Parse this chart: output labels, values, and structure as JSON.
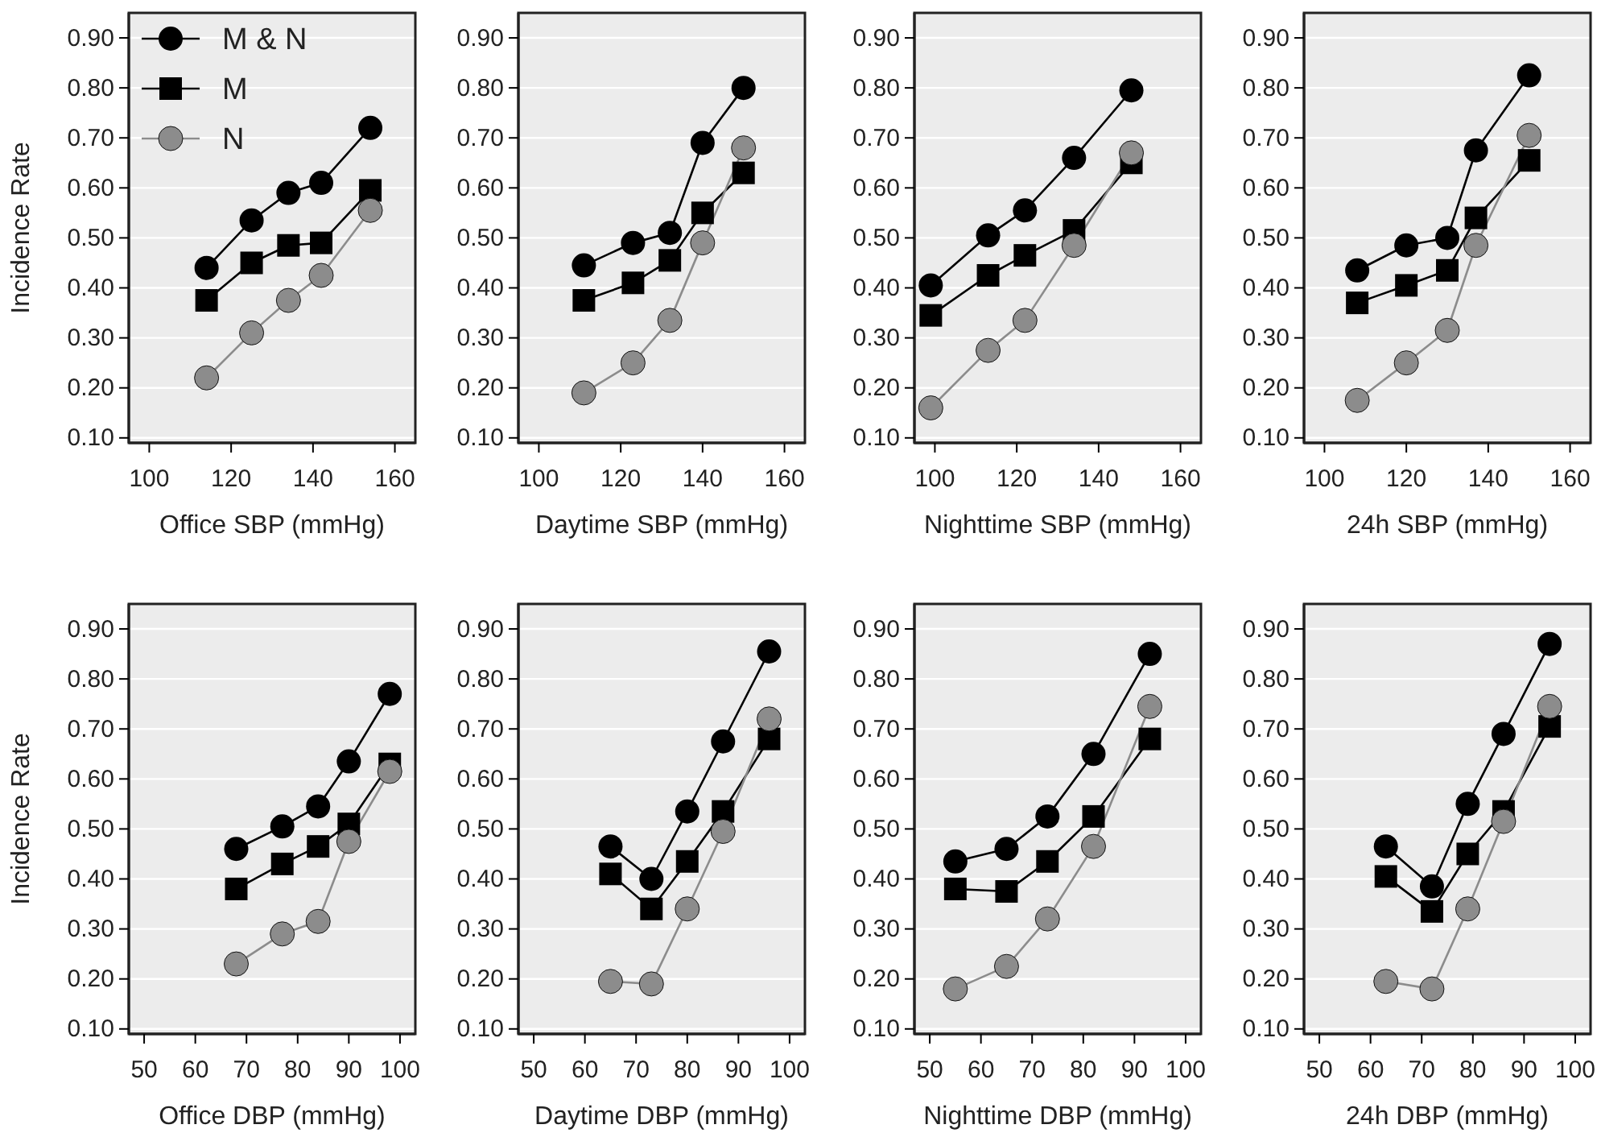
{
  "chart_data": [
    {
      "type": "line",
      "xlabel": "Office SBP (mmHg)",
      "ylabel": "Incidence Rate",
      "xlim": [
        95,
        165
      ],
      "xticks": [
        100,
        120,
        140,
        160
      ],
      "ylim": [
        0.09,
        0.95
      ],
      "yticks": [
        {
          "value": 0.1,
          "label": "0.10"
        },
        {
          "value": 0.2,
          "label": "0.20"
        },
        {
          "value": 0.3,
          "label": "0.30"
        },
        {
          "value": 0.4,
          "label": "0.40"
        },
        {
          "value": 0.5,
          "label": "0.50"
        },
        {
          "value": 0.6,
          "label": "0.60"
        },
        {
          "value": 0.7,
          "label": "0.70"
        },
        {
          "value": 0.8,
          "label": "0.80"
        },
        {
          "value": 0.9,
          "label": "0.90"
        }
      ],
      "grid": "y",
      "legend": "top left",
      "line_style": "solid",
      "series": [
        {
          "name": "M & N",
          "color": "#000000",
          "marker": "circle",
          "x": [
            114,
            125,
            134,
            142,
            154
          ],
          "values": [
            0.44,
            0.535,
            0.59,
            0.61,
            0.72
          ]
        },
        {
          "name": "M",
          "color": "#000000",
          "marker": "square",
          "x": [
            114,
            125,
            134,
            142,
            154
          ],
          "values": [
            0.375,
            0.45,
            0.485,
            0.49,
            0.595
          ]
        },
        {
          "name": "N",
          "color": "#8c8c8c",
          "marker": "circle",
          "x": [
            114,
            125,
            134,
            142,
            154
          ],
          "values": [
            0.22,
            0.31,
            0.375,
            0.425,
            0.555
          ]
        }
      ]
    },
    {
      "type": "line",
      "xlabel": "Daytime SBP (mmHg)",
      "xlim": [
        95,
        165
      ],
      "xticks": [
        100,
        120,
        140,
        160
      ],
      "ylim": [
        0.09,
        0.95
      ],
      "yticks": [
        {
          "value": 0.1,
          "label": "0.10"
        },
        {
          "value": 0.2,
          "label": "0.20"
        },
        {
          "value": 0.3,
          "label": "0.30"
        },
        {
          "value": 0.4,
          "label": "0.40"
        },
        {
          "value": 0.5,
          "label": "0.50"
        },
        {
          "value": 0.6,
          "label": "0.60"
        },
        {
          "value": 0.7,
          "label": "0.70"
        },
        {
          "value": 0.8,
          "label": "0.80"
        },
        {
          "value": 0.9,
          "label": "0.90"
        }
      ],
      "grid": "y",
      "line_style": "solid",
      "series": [
        {
          "color": "#000000",
          "marker": "circle",
          "x": [
            111,
            123,
            132,
            140,
            150
          ],
          "values": [
            0.445,
            0.49,
            0.51,
            0.69,
            0.8
          ]
        },
        {
          "color": "#000000",
          "marker": "square",
          "x": [
            111,
            123,
            132,
            140,
            150
          ],
          "values": [
            0.375,
            0.41,
            0.455,
            0.55,
            0.63
          ]
        },
        {
          "color": "#8c8c8c",
          "marker": "circle",
          "x": [
            111,
            123,
            132,
            140,
            150
          ],
          "values": [
            0.19,
            0.25,
            0.335,
            0.49,
            0.68
          ]
        }
      ]
    },
    {
      "type": "line",
      "xlabel": "Nighttime SBP (mmHg)",
      "xlim": [
        95,
        165
      ],
      "xticks": [
        100,
        120,
        140,
        160
      ],
      "ylim": [
        0.09,
        0.95
      ],
      "yticks": [
        {
          "value": 0.1,
          "label": "0.10"
        },
        {
          "value": 0.2,
          "label": "0.20"
        },
        {
          "value": 0.3,
          "label": "0.30"
        },
        {
          "value": 0.4,
          "label": "0.40"
        },
        {
          "value": 0.5,
          "label": "0.50"
        },
        {
          "value": 0.6,
          "label": "0.60"
        },
        {
          "value": 0.7,
          "label": "0.70"
        },
        {
          "value": 0.8,
          "label": "0.80"
        },
        {
          "value": 0.9,
          "label": "0.90"
        }
      ],
      "grid": "y",
      "line_style": "solid",
      "series": [
        {
          "color": "#000000",
          "marker": "circle",
          "x": [
            99,
            113,
            122,
            134,
            148
          ],
          "values": [
            0.405,
            0.505,
            0.555,
            0.66,
            0.795
          ]
        },
        {
          "color": "#000000",
          "marker": "square",
          "x": [
            99,
            113,
            122,
            134,
            148
          ],
          "values": [
            0.345,
            0.425,
            0.465,
            0.515,
            0.65
          ]
        },
        {
          "color": "#8c8c8c",
          "marker": "circle",
          "x": [
            99,
            113,
            122,
            134,
            148
          ],
          "values": [
            0.16,
            0.275,
            0.335,
            0.485,
            0.67
          ]
        }
      ]
    },
    {
      "type": "line",
      "xlabel": "24h SBP (mmHg)",
      "xlim": [
        95,
        165
      ],
      "xticks": [
        100,
        120,
        140,
        160
      ],
      "ylim": [
        0.09,
        0.95
      ],
      "yticks": [
        {
          "value": 0.1,
          "label": "0.10"
        },
        {
          "value": 0.2,
          "label": "0.20"
        },
        {
          "value": 0.3,
          "label": "0.30"
        },
        {
          "value": 0.4,
          "label": "0.40"
        },
        {
          "value": 0.5,
          "label": "0.50"
        },
        {
          "value": 0.6,
          "label": "0.60"
        },
        {
          "value": 0.7,
          "label": "0.70"
        },
        {
          "value": 0.8,
          "label": "0.80"
        },
        {
          "value": 0.9,
          "label": "0.90"
        }
      ],
      "grid": "y",
      "line_style": "solid",
      "series": [
        {
          "color": "#000000",
          "marker": "circle",
          "x": [
            108,
            120,
            130,
            137,
            150
          ],
          "values": [
            0.435,
            0.485,
            0.5,
            0.675,
            0.825
          ]
        },
        {
          "color": "#000000",
          "marker": "square",
          "x": [
            108,
            120,
            130,
            137,
            150
          ],
          "values": [
            0.37,
            0.405,
            0.435,
            0.54,
            0.655
          ]
        },
        {
          "color": "#8c8c8c",
          "marker": "circle",
          "x": [
            108,
            120,
            130,
            137,
            150
          ],
          "values": [
            0.175,
            0.25,
            0.315,
            0.485,
            0.705
          ]
        }
      ]
    },
    {
      "type": "line",
      "xlabel": "Office DBP (mmHg)",
      "ylabel": "Incidence Rate",
      "xlim": [
        47,
        103
      ],
      "xticks": [
        50,
        60,
        70,
        80,
        90,
        100
      ],
      "ylim": [
        0.09,
        0.95
      ],
      "yticks": [
        {
          "value": 0.1,
          "label": "0.10"
        },
        {
          "value": 0.2,
          "label": "0.20"
        },
        {
          "value": 0.3,
          "label": "0.30"
        },
        {
          "value": 0.4,
          "label": "0.40"
        },
        {
          "value": 0.5,
          "label": "0.50"
        },
        {
          "value": 0.6,
          "label": "0.60"
        },
        {
          "value": 0.7,
          "label": "0.70"
        },
        {
          "value": 0.8,
          "label": "0.80"
        },
        {
          "value": 0.9,
          "label": "0.90"
        }
      ],
      "grid": "y",
      "line_style": "solid",
      "series": [
        {
          "color": "#000000",
          "marker": "circle",
          "x": [
            68,
            77,
            84,
            90,
            98
          ],
          "values": [
            0.46,
            0.505,
            0.545,
            0.635,
            0.77
          ]
        },
        {
          "color": "#000000",
          "marker": "square",
          "x": [
            68,
            77,
            84,
            90,
            98
          ],
          "values": [
            0.38,
            0.43,
            0.465,
            0.51,
            0.63
          ]
        },
        {
          "color": "#8c8c8c",
          "marker": "circle",
          "x": [
            68,
            77,
            84,
            90,
            98
          ],
          "values": [
            0.23,
            0.29,
            0.315,
            0.475,
            0.615
          ]
        }
      ]
    },
    {
      "type": "line",
      "xlabel": "Daytime DBP (mmHg)",
      "xlim": [
        47,
        103
      ],
      "xticks": [
        50,
        60,
        70,
        80,
        90,
        100
      ],
      "ylim": [
        0.09,
        0.95
      ],
      "yticks": [
        {
          "value": 0.1,
          "label": "0.10"
        },
        {
          "value": 0.2,
          "label": "0.20"
        },
        {
          "value": 0.3,
          "label": "0.30"
        },
        {
          "value": 0.4,
          "label": "0.40"
        },
        {
          "value": 0.5,
          "label": "0.50"
        },
        {
          "value": 0.6,
          "label": "0.60"
        },
        {
          "value": 0.7,
          "label": "0.70"
        },
        {
          "value": 0.8,
          "label": "0.80"
        },
        {
          "value": 0.9,
          "label": "0.90"
        }
      ],
      "grid": "y",
      "line_style": "solid",
      "series": [
        {
          "color": "#000000",
          "marker": "circle",
          "x": [
            65,
            73,
            80,
            87,
            96
          ],
          "values": [
            0.465,
            0.4,
            0.535,
            0.675,
            0.855
          ]
        },
        {
          "color": "#000000",
          "marker": "square",
          "x": [
            65,
            73,
            80,
            87,
            96
          ],
          "values": [
            0.41,
            0.34,
            0.435,
            0.535,
            0.68
          ]
        },
        {
          "color": "#8c8c8c",
          "marker": "circle",
          "x": [
            65,
            73,
            80,
            87,
            96
          ],
          "values": [
            0.195,
            0.19,
            0.34,
            0.495,
            0.72
          ]
        }
      ]
    },
    {
      "type": "line",
      "xlabel": "Nighttime DBP (mmHg)",
      "xlim": [
        47,
        103
      ],
      "xticks": [
        50,
        60,
        70,
        80,
        90,
        100
      ],
      "ylim": [
        0.09,
        0.95
      ],
      "yticks": [
        {
          "value": 0.1,
          "label": "0.10"
        },
        {
          "value": 0.2,
          "label": "0.20"
        },
        {
          "value": 0.3,
          "label": "0.30"
        },
        {
          "value": 0.4,
          "label": "0.40"
        },
        {
          "value": 0.5,
          "label": "0.50"
        },
        {
          "value": 0.6,
          "label": "0.60"
        },
        {
          "value": 0.7,
          "label": "0.70"
        },
        {
          "value": 0.8,
          "label": "0.80"
        },
        {
          "value": 0.9,
          "label": "0.90"
        }
      ],
      "grid": "y",
      "line_style": "solid",
      "series": [
        {
          "color": "#000000",
          "marker": "circle",
          "x": [
            55,
            65,
            73,
            82,
            93
          ],
          "values": [
            0.435,
            0.46,
            0.525,
            0.65,
            0.85
          ]
        },
        {
          "color": "#000000",
          "marker": "square",
          "x": [
            55,
            65,
            73,
            82,
            93
          ],
          "values": [
            0.38,
            0.375,
            0.435,
            0.525,
            0.68
          ]
        },
        {
          "color": "#8c8c8c",
          "marker": "circle",
          "x": [
            55,
            65,
            73,
            82,
            93
          ],
          "values": [
            0.18,
            0.225,
            0.32,
            0.465,
            0.745
          ]
        }
      ]
    },
    {
      "type": "line",
      "xlabel": "24h DBP (mmHg)",
      "xlim": [
        47,
        103
      ],
      "xticks": [
        50,
        60,
        70,
        80,
        90,
        100
      ],
      "ylim": [
        0.09,
        0.95
      ],
      "yticks": [
        {
          "value": 0.1,
          "label": "0.10"
        },
        {
          "value": 0.2,
          "label": "0.20"
        },
        {
          "value": 0.3,
          "label": "0.30"
        },
        {
          "value": 0.4,
          "label": "0.40"
        },
        {
          "value": 0.5,
          "label": "0.50"
        },
        {
          "value": 0.6,
          "label": "0.60"
        },
        {
          "value": 0.7,
          "label": "0.70"
        },
        {
          "value": 0.8,
          "label": "0.80"
        },
        {
          "value": 0.9,
          "label": "0.90"
        }
      ],
      "grid": "y",
      "line_style": "solid",
      "series": [
        {
          "color": "#000000",
          "marker": "circle",
          "x": [
            63,
            72,
            79,
            86,
            95
          ],
          "values": [
            0.465,
            0.385,
            0.55,
            0.69,
            0.87
          ]
        },
        {
          "color": "#000000",
          "marker": "square",
          "x": [
            63,
            72,
            79,
            86,
            95
          ],
          "values": [
            0.405,
            0.335,
            0.45,
            0.535,
            0.705
          ]
        },
        {
          "color": "#8c8c8c",
          "marker": "circle",
          "x": [
            63,
            72,
            79,
            86,
            95
          ],
          "values": [
            0.195,
            0.18,
            0.34,
            0.515,
            0.745
          ]
        }
      ]
    }
  ]
}
